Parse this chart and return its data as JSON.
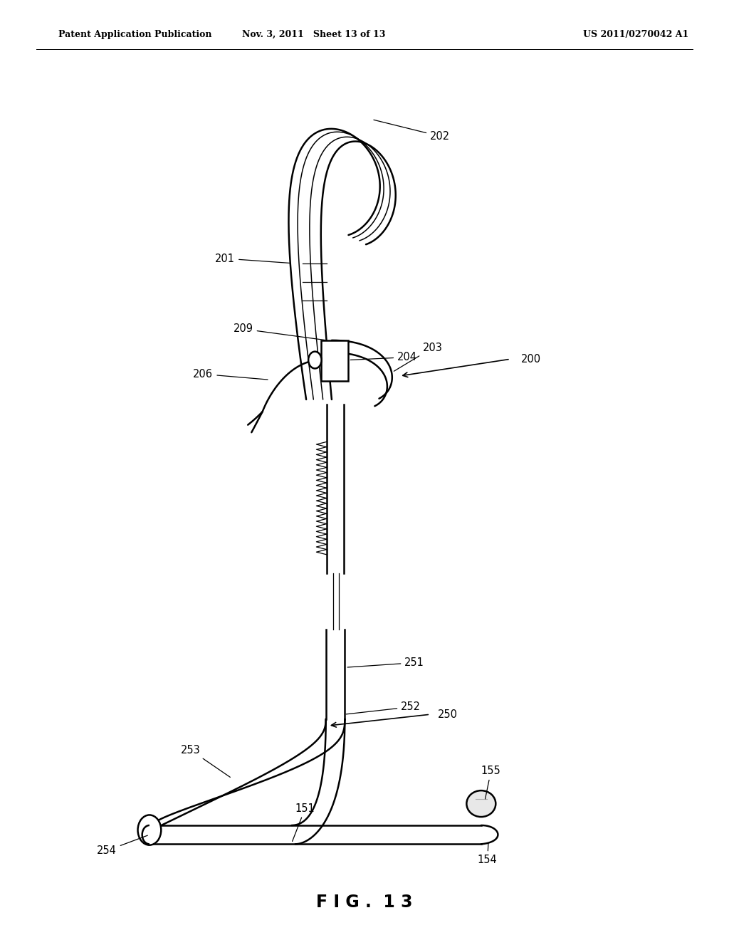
{
  "bg_color": "#ffffff",
  "header_left": "Patent Application Publication",
  "header_mid": "Nov. 3, 2011   Sheet 13 of 13",
  "header_right": "US 2011/0270042 A1",
  "fig_label": "FIG. 13"
}
